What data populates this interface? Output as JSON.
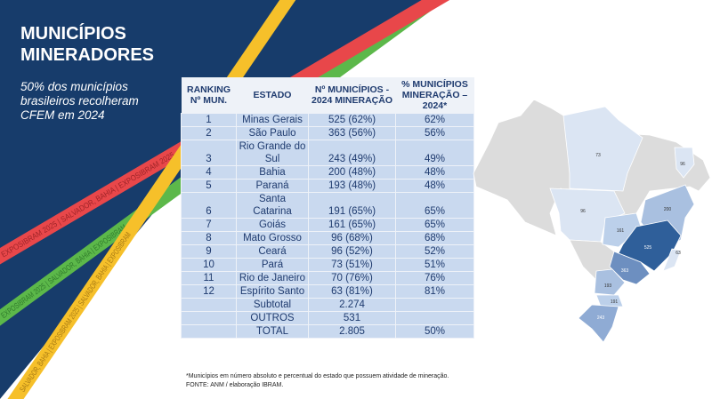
{
  "header": {
    "title_line1": "MUNICÍPIOS",
    "title_line2": "MINERADORES",
    "subtitle": "50% dos municípios brasileiros recolheram CFEM em 2024"
  },
  "ribbons": {
    "text_red": "EXPOSIBRAM 2025  |  SALVADOR, BAHIA  |  EXPOSIBRAM 2025",
    "text_green": "EXPOSIBRAM 2025  |  SALVADOR, BAHIA  |  EXPOSIBRAM",
    "text_yellow": "SALVADOR, BAHIA  |  EXPOSIBRAM 2025  |  SALVADOR, BAHIA  |  EXPOSIBRAM",
    "colors": {
      "red": "#e8474a",
      "green": "#5cb84a",
      "yellow": "#f6c02a",
      "navy": "#173c6b"
    }
  },
  "table": {
    "headers": [
      "RANKING Nº MUN.",
      "ESTADO",
      "Nº MUNICÍPIOS - 2024 MINERAÇÃO",
      "% MUNICÍPIOS MINERAÇÃO – 2024*"
    ],
    "rows": [
      [
        "1",
        "Minas Gerais",
        "525 (62%)",
        "62%"
      ],
      [
        "2",
        "São Paulo",
        "363 (56%)",
        "56%"
      ],
      [
        "3",
        "Rio Grande do Sul",
        "243 (49%)",
        "49%"
      ],
      [
        "4",
        "Bahia",
        "200 (48%)",
        "48%"
      ],
      [
        "5",
        "Paraná",
        "193 (48%)",
        "48%"
      ],
      [
        "6",
        "Santa Catarina",
        "191 (65%)",
        "65%"
      ],
      [
        "7",
        "Goiás",
        "161 (65%)",
        "65%"
      ],
      [
        "8",
        "Mato Grosso",
        "96 (68%)",
        "68%"
      ],
      [
        "9",
        "Ceará",
        "96 (52%)",
        "52%"
      ],
      [
        "10",
        "Pará",
        "73 (51%)",
        "51%"
      ],
      [
        "11",
        "Rio de Janeiro",
        "70 (76%)",
        "76%"
      ],
      [
        "12",
        "Espírito Santo",
        "63 (81%)",
        "81%"
      ],
      [
        "",
        "Subtotal",
        "2.274",
        ""
      ],
      [
        "",
        "OUTROS",
        "531",
        ""
      ],
      [
        "",
        "TOTAL",
        "2.805",
        "50%"
      ]
    ]
  },
  "map": {
    "labels": {
      "PA": "73",
      "CE": "96",
      "MT": "96",
      "BA": "200",
      "GO": "161",
      "MG": "525",
      "ES": "63",
      "SP": "363",
      "PR": "193",
      "SC": "191",
      "RS": "243"
    }
  },
  "footnote": {
    "line1": "*Municípios em número absoluto e percentual do estado que possuem atividade de mineração.",
    "line2": "FONTE: ANM / elaboração IBRAM."
  }
}
